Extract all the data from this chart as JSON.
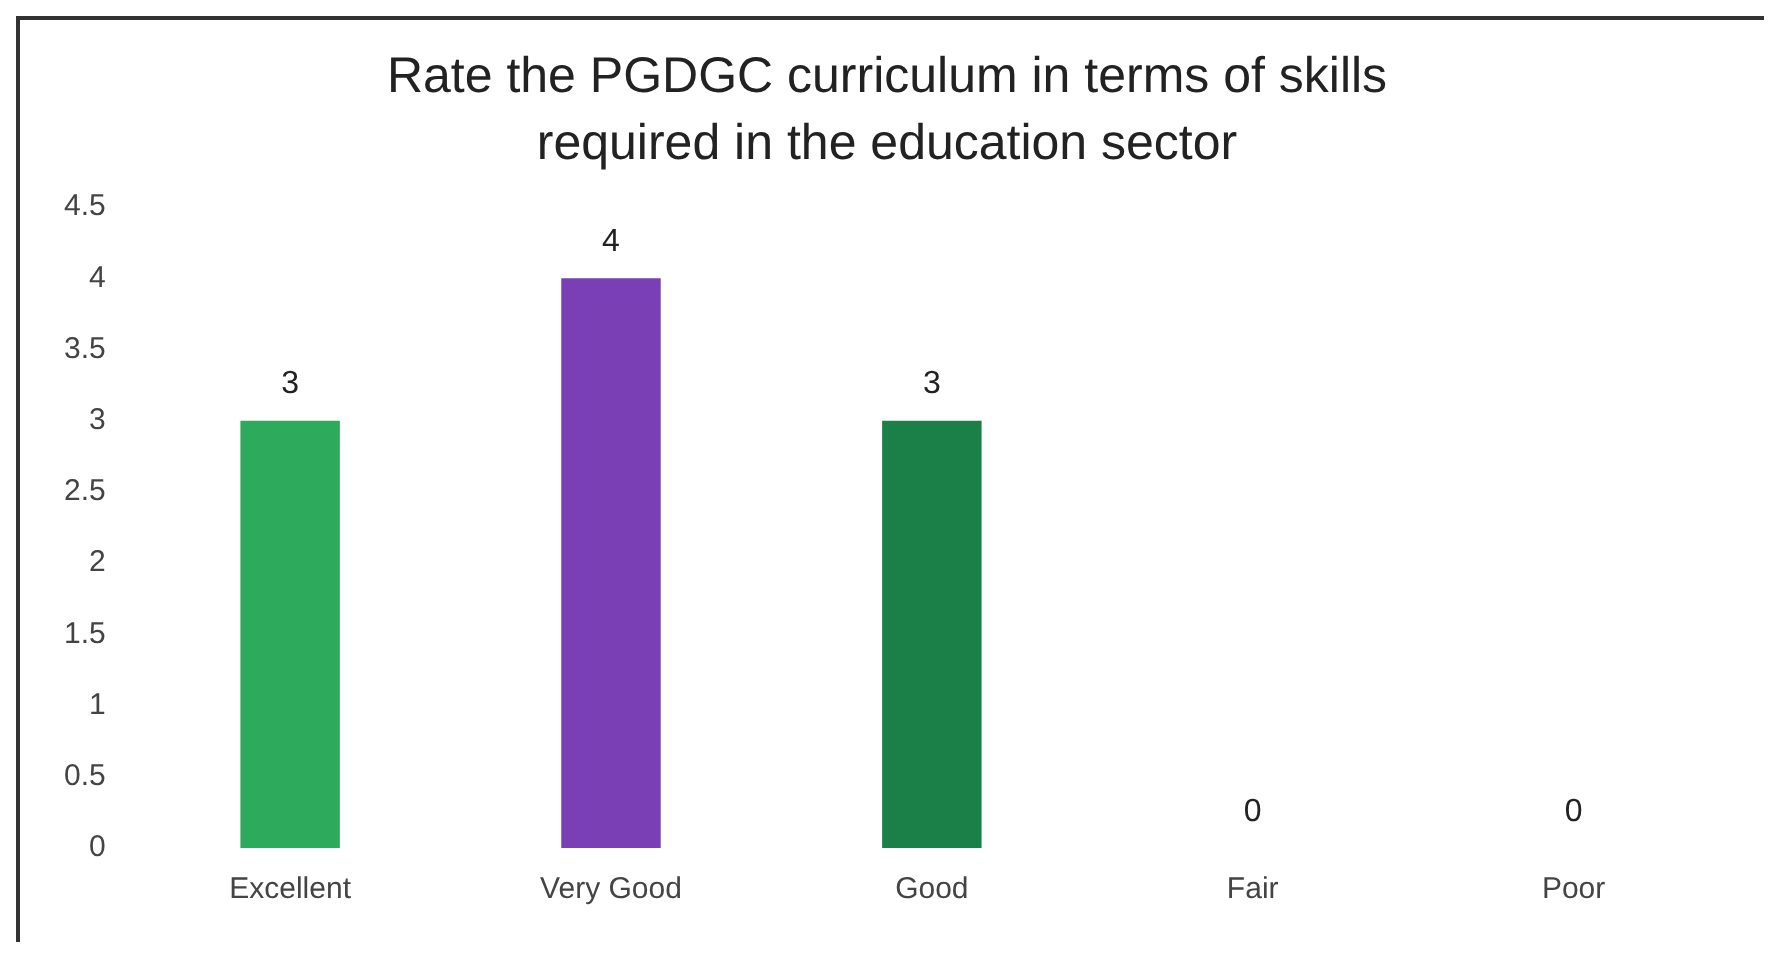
{
  "chart_data": {
    "type": "bar",
    "title": "Rate the PGDGC curriculum in terms of skills required in the education sector",
    "categories": [
      "Excellent",
      "Very Good",
      "Good",
      "Fair",
      "Poor"
    ],
    "values": [
      3,
      4,
      3,
      0,
      0
    ],
    "colors": [
      "#2eaa5c",
      "#7b3fb5",
      "#1b8047",
      "#2eaa5c",
      "#7b3fb5"
    ],
    "ylim": [
      0,
      4.5
    ],
    "yticks": [
      0,
      0.5,
      1,
      1.5,
      2,
      2.5,
      3,
      3.5,
      4,
      4.5
    ],
    "grid": false,
    "legend": false,
    "data_labels": true
  }
}
